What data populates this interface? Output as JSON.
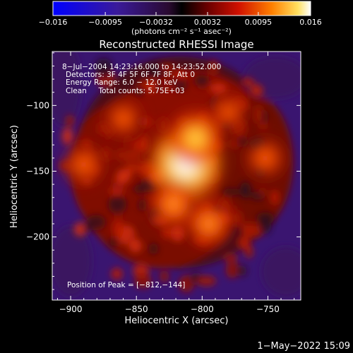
{
  "chart_data": {
    "type": "heatmap",
    "title": "Reconstructed RHESSI Image",
    "xlabel": "Heliocentric X (arcsec)",
    "ylabel": "Heliocentric Y (arcsec)",
    "xlim": [
      -914,
      -725
    ],
    "ylim": [
      -248,
      -59
    ],
    "x_ticks": [
      -900,
      -850,
      -800,
      -750
    ],
    "x_tick_labels": [
      "−900",
      "−850",
      "−800",
      "−750"
    ],
    "y_ticks": [
      -100,
      -150,
      -200
    ],
    "y_tick_labels": [
      "−100",
      "−150",
      "−200"
    ],
    "colorbar": {
      "range": [
        -0.016,
        0.016
      ],
      "ticks": [
        -0.016,
        -0.0095,
        -0.0032,
        0.0032,
        0.0095,
        0.016
      ],
      "tick_labels": [
        "−0.016",
        "−0.0095",
        "−0.0032",
        "0.0032",
        "0.0095",
        "0.016"
      ],
      "unit_label": "(photons cm⁻² s⁻¹ asec⁻²)"
    },
    "annotations": [
      "8−Jul−2004 14:23:16.000 to 14:23:52.000",
      "Detectors: 3F 4F 5F 6F 7F 8F, Att 0",
      "Energy Range: 6.0 − 12.0 keV",
      "Clean     Total counts: 5.75E+03"
    ],
    "peak_label": "Position of Peak = [−812,−144]",
    "peak": [
      -812,
      -144
    ],
    "peak_value": 0.016,
    "sources": [
      {
        "x": -812,
        "y": -144,
        "value": 0.016
      },
      {
        "x": -805,
        "y": -125,
        "value": 0.011
      },
      {
        "x": -822,
        "y": -175,
        "value": 0.009
      },
      {
        "x": -795,
        "y": -190,
        "value": 0.008
      },
      {
        "x": -890,
        "y": -145,
        "value": 0.007
      },
      {
        "x": -752,
        "y": -140,
        "value": 0.007
      },
      {
        "x": -860,
        "y": -110,
        "value": 0.006
      },
      {
        "x": -780,
        "y": -105,
        "value": 0.005
      }
    ],
    "grid": false
  },
  "timestamp": "1−May−2022 15:09"
}
